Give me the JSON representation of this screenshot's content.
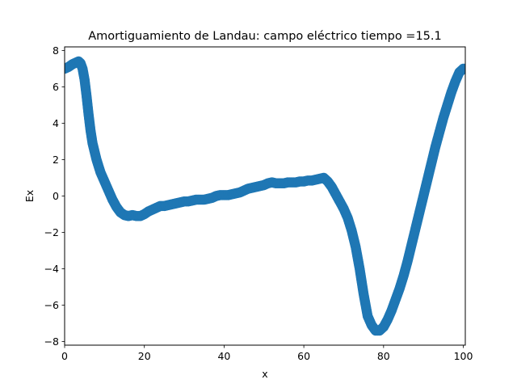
{
  "chart_data": {
    "type": "scatter",
    "title": "Amortiguamiento de Landau: campo eléctrico  tiempo =15.1",
    "xlabel": "x",
    "ylabel": "Ex",
    "xlim": [
      0,
      100.5
    ],
    "ylim": [
      -8.2,
      8.2
    ],
    "xticks": [
      0,
      20,
      40,
      60,
      80,
      100
    ],
    "yticks": [
      -8,
      -6,
      -4,
      -2,
      0,
      2,
      4,
      6,
      8
    ],
    "grid": false,
    "legend": "none",
    "series": [
      {
        "color": "#1f77b4",
        "x": [
          0,
          1,
          2,
          3,
          3.5,
          4,
          4.5,
          5,
          5.5,
          6,
          6.5,
          7,
          8,
          9,
          10,
          11,
          12,
          13,
          14,
          15,
          16,
          17,
          18,
          19,
          20,
          21,
          22,
          23,
          24,
          25,
          26,
          27,
          28,
          29,
          30,
          31,
          32,
          33,
          34,
          35,
          36,
          37,
          38,
          39,
          40,
          41,
          42,
          43,
          44,
          45,
          46,
          47,
          48,
          49,
          50,
          51,
          52,
          53,
          54,
          55,
          56,
          57,
          58,
          59,
          60,
          61,
          62,
          63,
          64,
          65,
          66,
          67,
          68,
          69,
          70,
          71,
          72,
          73,
          74,
          75,
          76,
          77,
          78,
          79,
          80,
          81,
          82,
          83,
          84,
          85,
          86,
          87,
          88,
          89,
          90,
          91,
          92,
          93,
          94,
          95,
          96,
          97,
          98,
          99,
          100,
          100.5
        ],
        "y": [
          7.0,
          7.1,
          7.25,
          7.35,
          7.4,
          7.3,
          7.0,
          6.4,
          5.5,
          4.5,
          3.6,
          2.9,
          2.0,
          1.3,
          0.8,
          0.3,
          -0.2,
          -0.6,
          -0.9,
          -1.05,
          -1.1,
          -1.05,
          -1.1,
          -1.1,
          -1.0,
          -0.85,
          -0.75,
          -0.65,
          -0.55,
          -0.55,
          -0.5,
          -0.45,
          -0.4,
          -0.35,
          -0.3,
          -0.3,
          -0.25,
          -0.2,
          -0.2,
          -0.2,
          -0.15,
          -0.1,
          0.0,
          0.05,
          0.05,
          0.05,
          0.1,
          0.15,
          0.2,
          0.3,
          0.4,
          0.45,
          0.5,
          0.55,
          0.6,
          0.7,
          0.75,
          0.7,
          0.7,
          0.7,
          0.75,
          0.75,
          0.75,
          0.8,
          0.8,
          0.85,
          0.85,
          0.9,
          0.95,
          1.0,
          0.8,
          0.5,
          0.1,
          -0.3,
          -0.7,
          -1.2,
          -1.9,
          -2.8,
          -4.0,
          -5.4,
          -6.6,
          -7.1,
          -7.4,
          -7.4,
          -7.2,
          -6.8,
          -6.3,
          -5.7,
          -5.1,
          -4.4,
          -3.6,
          -2.7,
          -1.8,
          -0.9,
          0.0,
          0.9,
          1.8,
          2.7,
          3.5,
          4.3,
          5.0,
          5.7,
          6.3,
          6.8,
          7.0,
          7.0
        ]
      }
    ]
  }
}
